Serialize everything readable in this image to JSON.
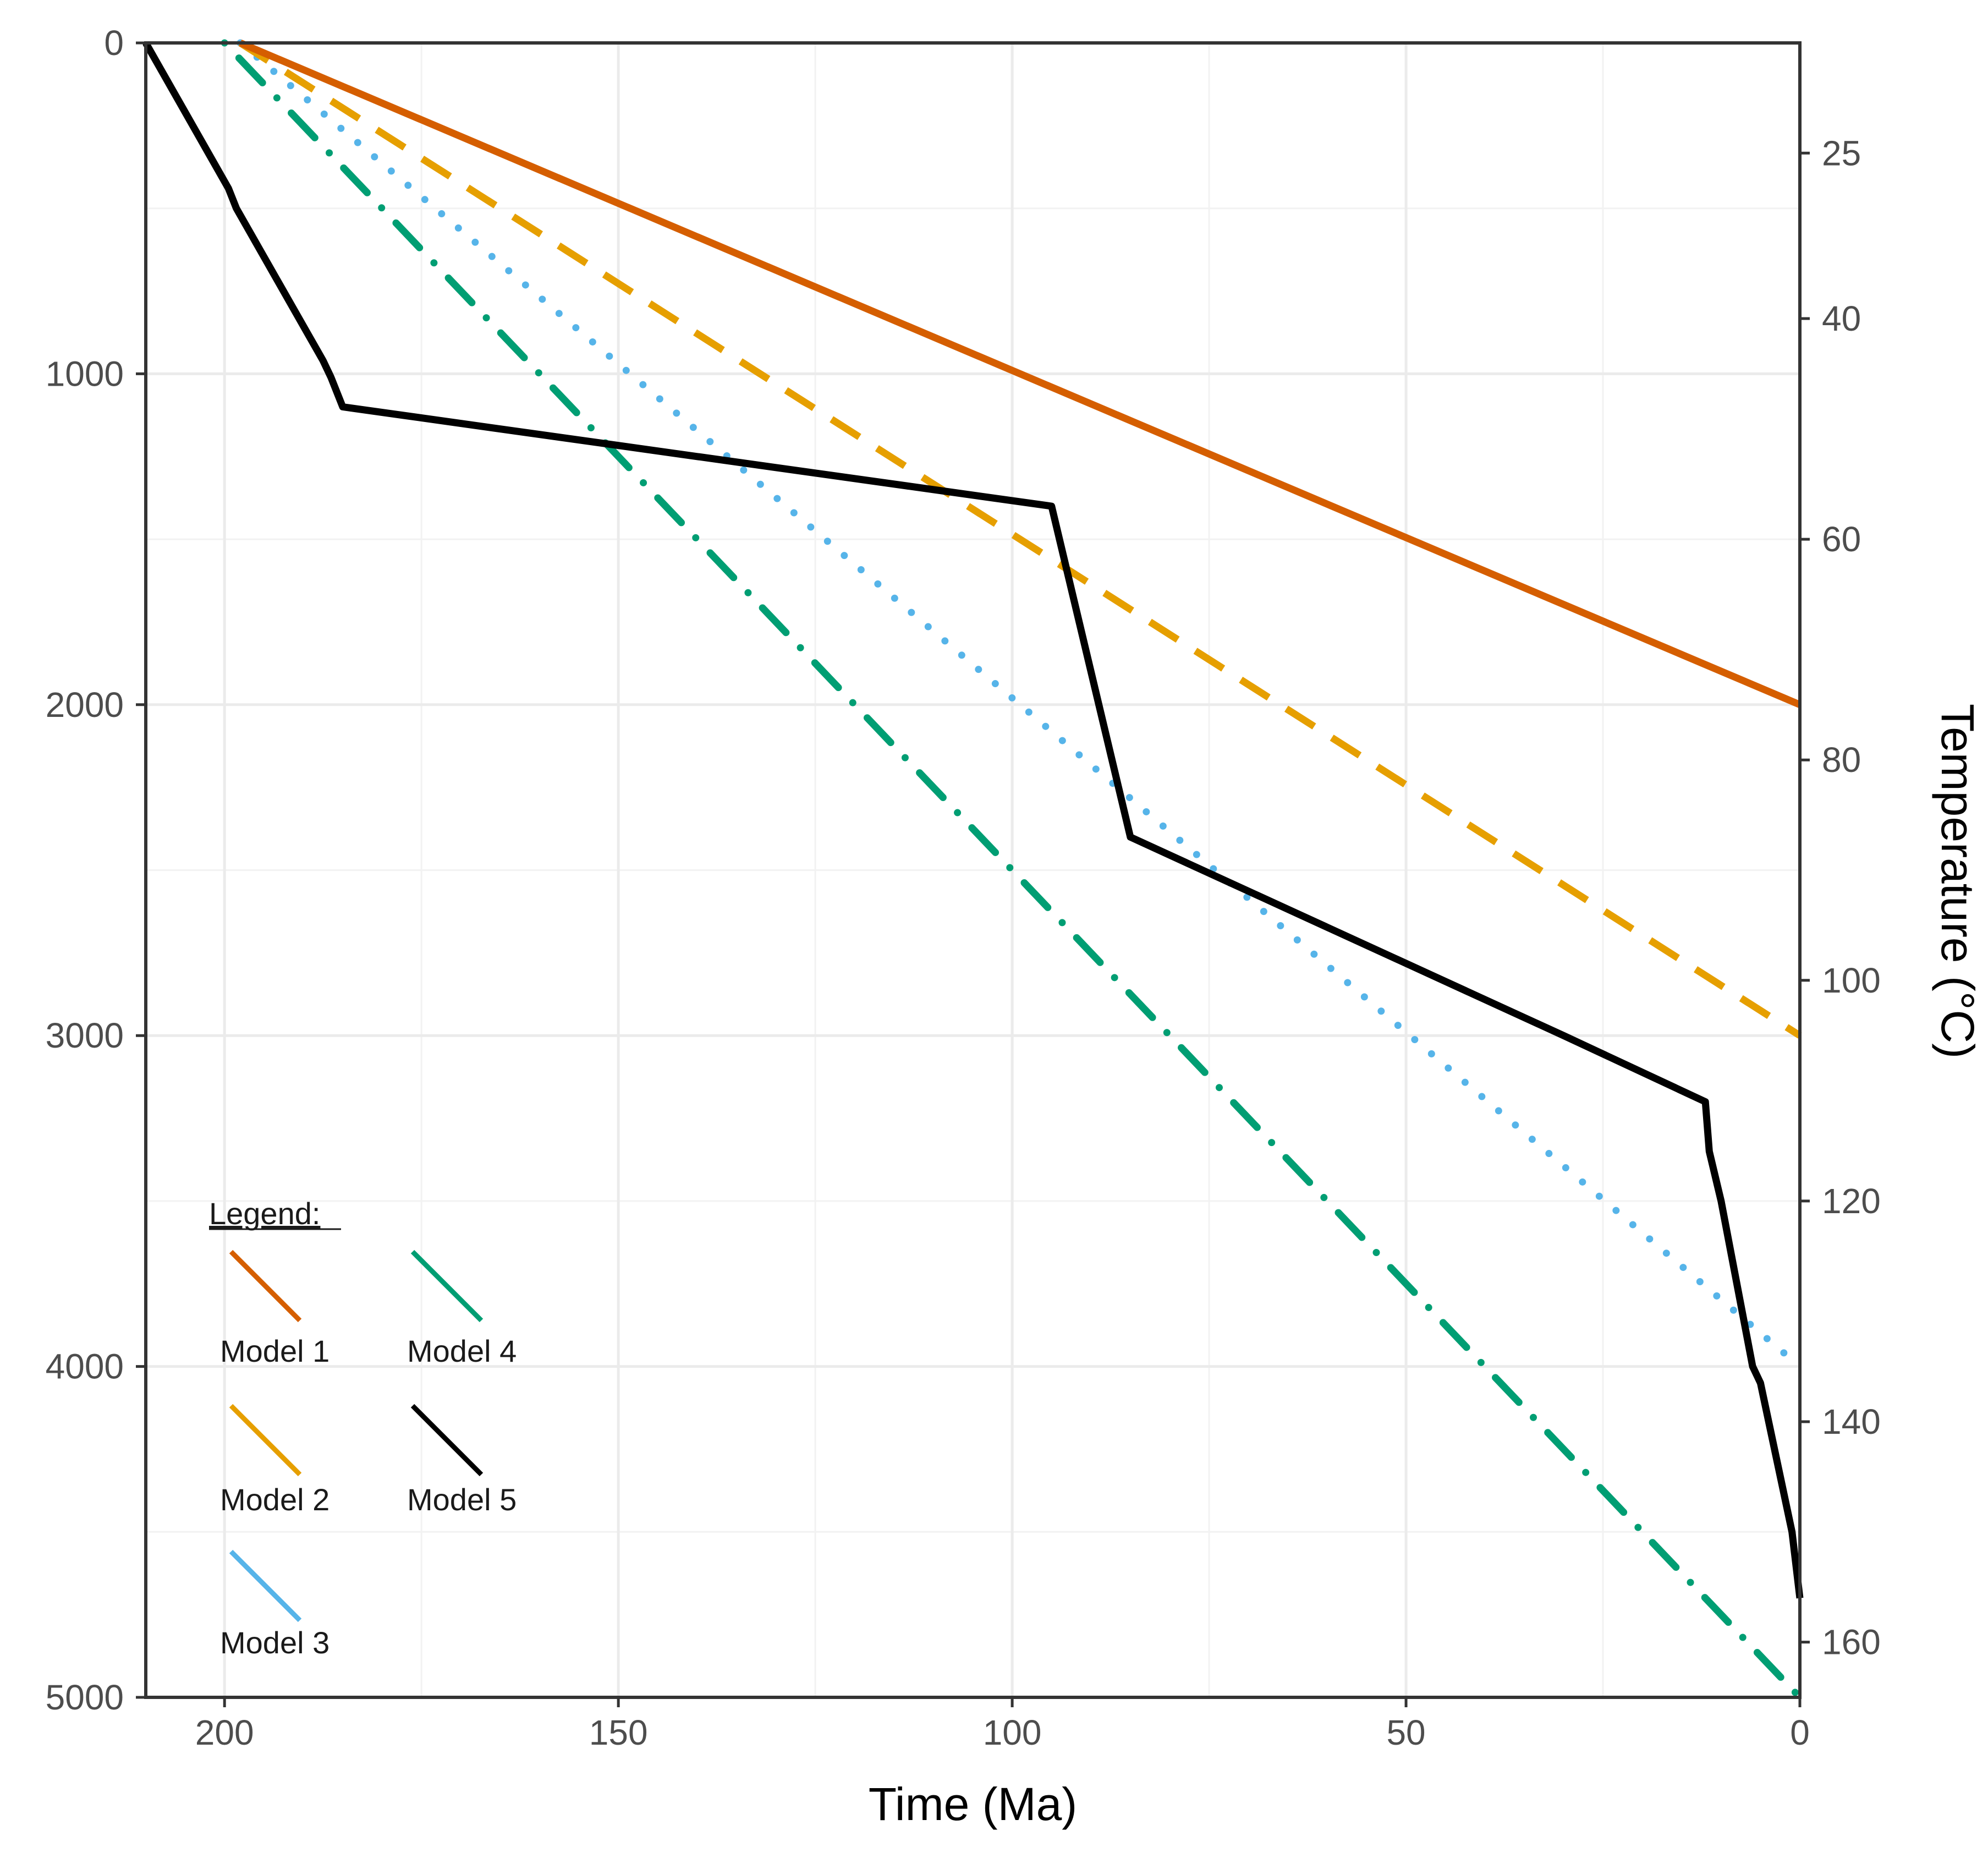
{
  "chart_data": {
    "type": "line",
    "title": "",
    "xlabel": "Time (Ma)",
    "ylabel_left": "",
    "ylabel_right": "Temperature (°C)",
    "xlim": [
      210,
      0
    ],
    "ylim": [
      0,
      5000
    ],
    "x_reversed": true,
    "y_reversed": true,
    "grid": true,
    "x_ticks": [
      200,
      150,
      100,
      50,
      0
    ],
    "y_ticks": [
      0,
      1000,
      2000,
      3000,
      4000,
      5000
    ],
    "right_ticks": [
      {
        "label": "25",
        "depth": 333
      },
      {
        "label": "40",
        "depth": 833
      },
      {
        "label": "60",
        "depth": 1500
      },
      {
        "label": "80",
        "depth": 2167
      },
      {
        "label": "100",
        "depth": 2833
      },
      {
        "label": "120",
        "depth": 3500
      },
      {
        "label": "140",
        "depth": 4167
      },
      {
        "label": "160",
        "depth": 4833
      }
    ],
    "legend_title": "Legend:",
    "legend_position": "bottom-left",
    "series": [
      {
        "name": "Model 1",
        "color": "#D55E00",
        "dash": "solid",
        "x": [
          198,
          0
        ],
        "y": [
          0,
          2000
        ]
      },
      {
        "name": "Model 2",
        "color": "#E69F00",
        "dash": "dashed",
        "x": [
          198,
          0
        ],
        "y": [
          0,
          3000
        ]
      },
      {
        "name": "Model 3",
        "color": "#56B4E9",
        "dash": "dotted",
        "x": [
          198,
          0
        ],
        "y": [
          0,
          4000
        ]
      },
      {
        "name": "Model 4",
        "color": "#009E73",
        "dash": "dotdash",
        "x": [
          200,
          0
        ],
        "y": [
          0,
          5000
        ]
      },
      {
        "name": "Model 5",
        "color": "#000000",
        "dash": "solid",
        "x": [
          210,
          199.5,
          198.5,
          187.5,
          186.5,
          185,
          95,
          85,
          30,
          12,
          11.5,
          10,
          6,
          5,
          1,
          0
        ],
        "y": [
          0,
          440,
          500,
          960,
          1010,
          1100,
          1400,
          2400,
          3000,
          3200,
          3350,
          3500,
          4000,
          4050,
          4500,
          4700
        ]
      }
    ]
  }
}
